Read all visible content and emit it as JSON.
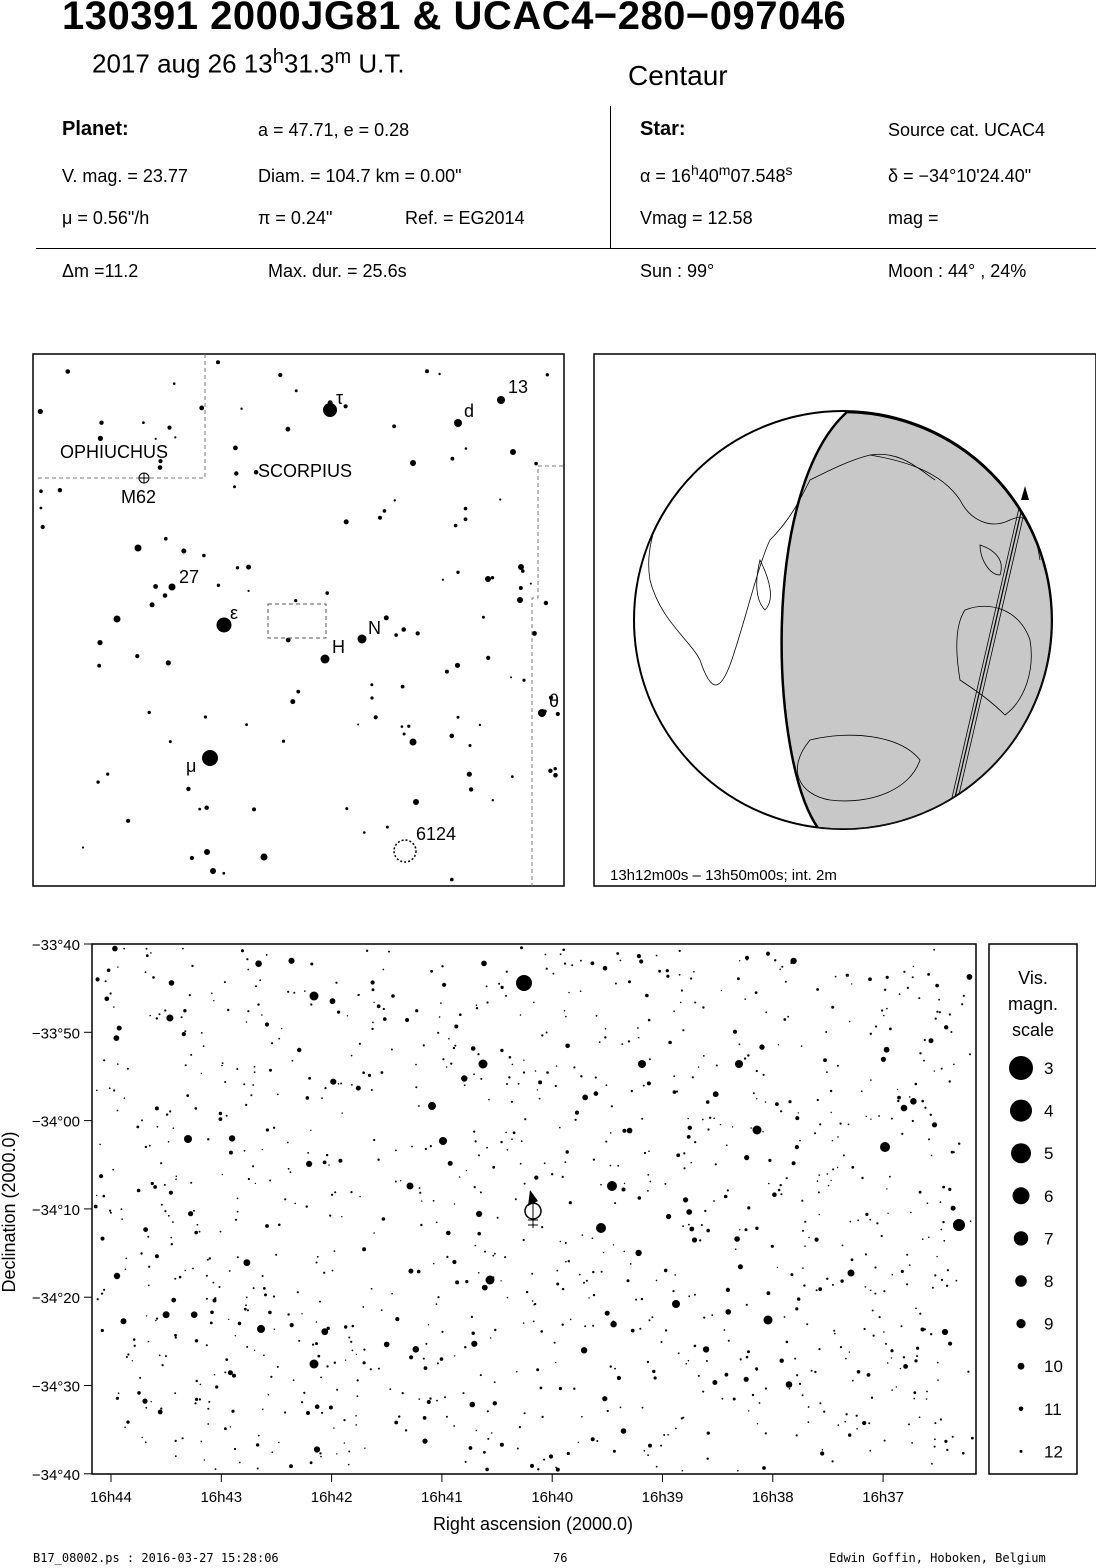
{
  "header": {
    "title": "130391 2000JG81  &  UCAC4−280−097046",
    "date": "2017 aug 26  13",
    "time_h": "h",
    "time_min": "31.3",
    "time_m": "m",
    "time_ut": " U.T.",
    "constellation": "Centaur"
  },
  "planet": {
    "heading": "Planet:",
    "orbit": "a = 47.71, e = 0.28",
    "vmag": "V. mag. = 23.77",
    "diam": "Diam. = 104.7 km = 0.00\"",
    "mu": "μ =  0.56\"/h",
    "pi": "π =  0.24\"",
    "ref": "Ref. = EG2014",
    "dm": "Δm =11.2",
    "maxdur": "Max. dur. = 25.6s"
  },
  "star": {
    "heading": "Star:",
    "source": "Source cat.  UCAC4",
    "alpha_label": "α = 16",
    "alpha_h": "h",
    "alpha_min": "40",
    "alpha_m": "m",
    "alpha_sec": "07.548",
    "alpha_s": "s",
    "delta": "δ = −34°10'24.40\"",
    "vmag": "Vmag = 12.58",
    "mag": " mag =",
    "sun": "Sun :  99°",
    "moon": "Moon :  44° , 24%"
  },
  "finder": {
    "labels": {
      "ophiuchus": "OPHIUCHUS",
      "scorpius": "SCORPIUS",
      "m62": "M62",
      "tau": "τ",
      "d": "d",
      "n13": "13",
      "n27": "27",
      "eps": "ε",
      "N": "N",
      "H": "H",
      "theta": "θ",
      "mu": "μ",
      "n6124": "6124"
    }
  },
  "globe": {
    "caption": "13h12m00s – 13h50m00s; int.  2m"
  },
  "chart": {
    "dec_ticks": [
      "−33°40",
      "−33°50",
      "−34°00",
      "−34°10",
      "−34°20",
      "−34°30",
      "−34°40"
    ],
    "ra_ticks": [
      "16h44",
      "16h43",
      "16h42",
      "16h41",
      "16h40",
      "16h39",
      "16h38",
      "16h37"
    ],
    "xlabel": "Right ascension (2000.0)",
    "ylabel": "Declination (2000.0)"
  },
  "legend": {
    "title1": "Vis.",
    "title2": "magn.",
    "title3": "scale",
    "mags": [
      "3",
      "4",
      "5",
      "6",
      "7",
      "8",
      "9",
      "10",
      "11",
      "12"
    ]
  },
  "footer": {
    "file": "B17_08002.ps : 2016-03-27 15:28:06",
    "page": "76",
    "author": "Edwin Goffin, Hoboken, Belgium"
  }
}
